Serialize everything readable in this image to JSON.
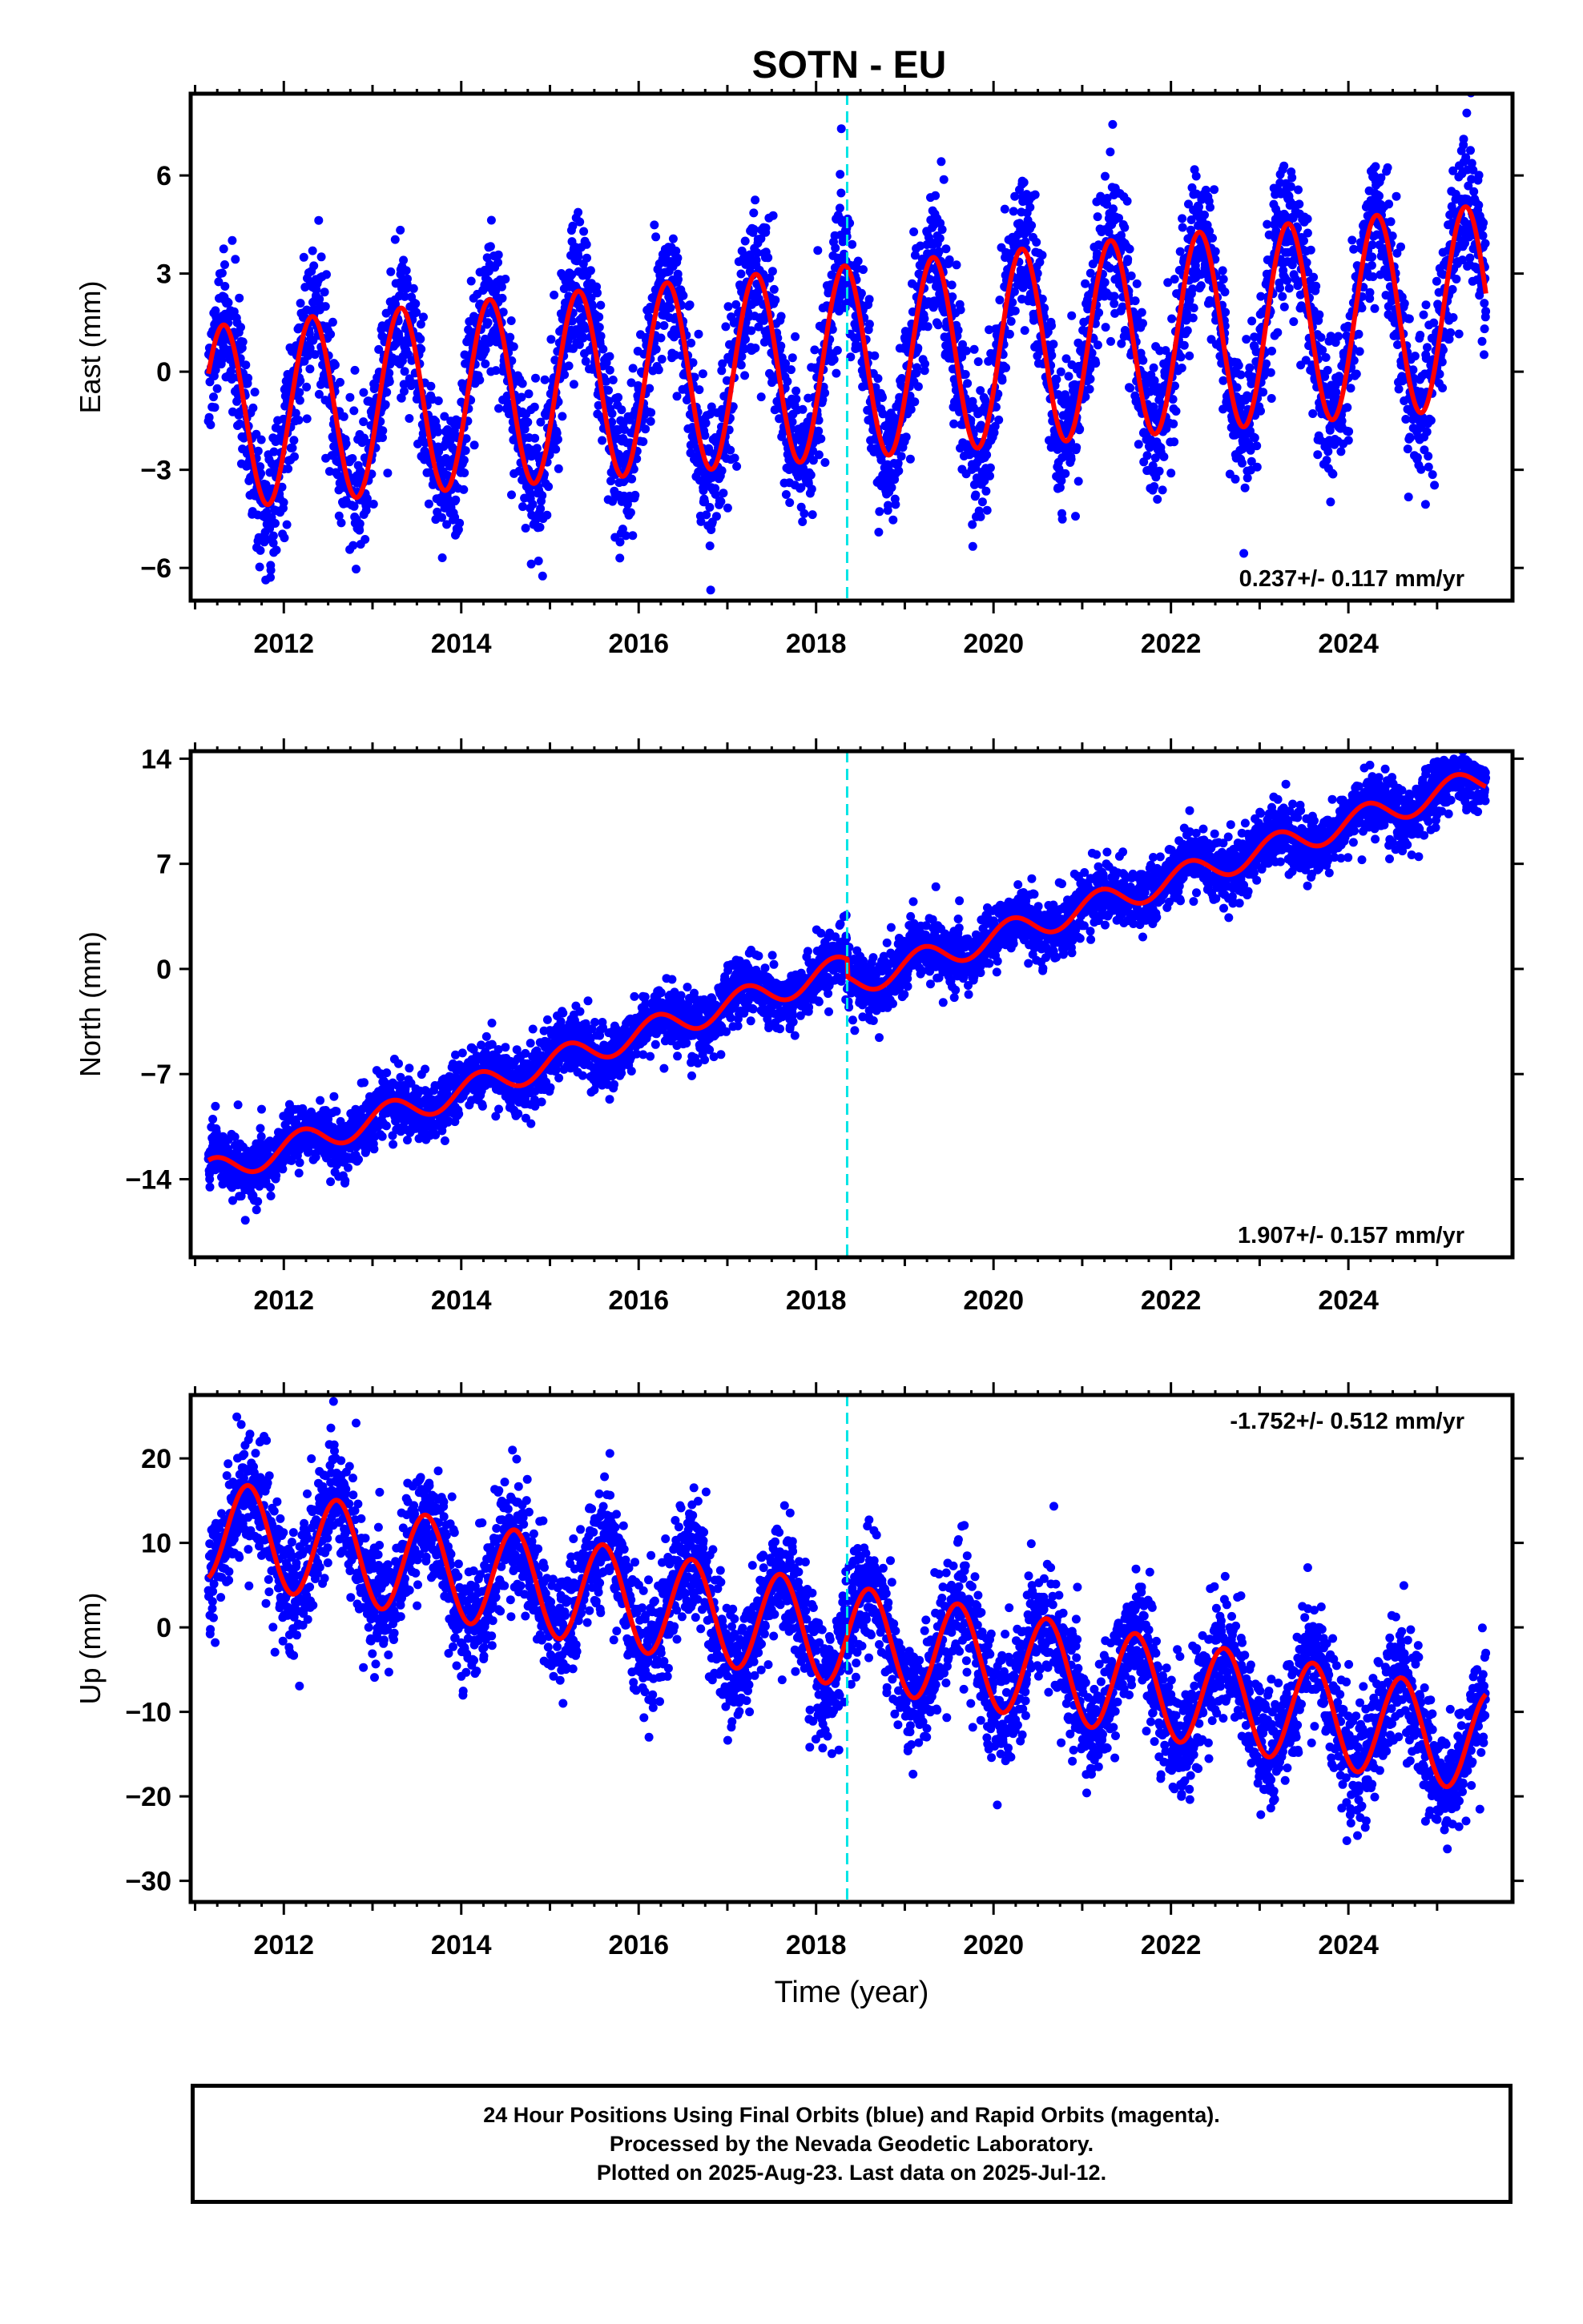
{
  "chart_data": {
    "type": "scatter",
    "title": "SOTN - EU",
    "xlabel": "Time (year)",
    "x_ticks": [
      "2012",
      "2014",
      "2016",
      "2018",
      "2020",
      "2022",
      "2024"
    ],
    "xlim": [
      2010.95,
      2025.85
    ],
    "event_marker": {
      "x": 2018.35,
      "style": "dashed",
      "color": "#00e5e5"
    },
    "point_color": "#0000ff",
    "fit_color": "#ff0000",
    "panels": [
      {
        "name": "east",
        "ylabel": "East (mm)",
        "ylim": [
          -7.0,
          8.5
        ],
        "yticks": [
          6,
          3,
          0,
          -3,
          -6
        ],
        "ytick_labels": [
          "6",
          "3",
          "0",
          "−3",
          "−6"
        ],
        "rate_label": "0.237+/- 0.117 mm/yr",
        "rate_position": "bottom-right",
        "data_range": [
          2011.15,
          2025.55
        ],
        "model": {
          "offset": -1.4,
          "trend": 0.237,
          "ref_year": 2011.2,
          "amplitude_start": 2.8,
          "amplitude_end": 3.1,
          "period": 1.0,
          "peak_phase": 0.32,
          "noise": 1.4,
          "jump": 0
        }
      },
      {
        "name": "north",
        "ylabel": "North (mm)",
        "ylim": [
          -19.2,
          14.5
        ],
        "yticks": [
          14,
          7,
          0,
          -7,
          -14
        ],
        "ytick_labels": [
          "14",
          "7",
          "0",
          "−7",
          "−14"
        ],
        "rate_label": "1.907+/- 0.157 mm/yr",
        "rate_position": "bottom-right",
        "data_range": [
          2011.15,
          2025.55
        ],
        "model": {
          "offset": -13.5,
          "trend": 1.907,
          "ref_year": 2011.2,
          "amplitude_start": 0.9,
          "amplitude_end": 0.9,
          "period": 1.0,
          "peak_phase": 0.2,
          "noise": 1.3,
          "jump": -1.2
        }
      },
      {
        "name": "up",
        "ylabel": "Up (mm)",
        "ylim": [
          -32.5,
          27.5
        ],
        "yticks": [
          20,
          10,
          0,
          -10,
          -20,
          -30
        ],
        "ytick_labels": [
          "20",
          "10",
          "0",
          "−10",
          "−20",
          "−30"
        ],
        "rate_label": "-1.752+/- 0.512 mm/yr",
        "rate_position": "top-right",
        "data_range": [
          2011.15,
          2025.55
        ],
        "model": {
          "offset": 11.5,
          "trend": -1.752,
          "ref_year": 2011.2,
          "amplitude_start": 6.0,
          "amplitude_end": 6.0,
          "period": 1.0,
          "peak_phase": 0.6,
          "noise": 4.5,
          "jump": 0
        }
      }
    ]
  },
  "caption": {
    "line1": "24 Hour Positions Using Final Orbits (blue) and Rapid Orbits (magenta).",
    "line2": "Processed by the Nevada Geodetic Laboratory.",
    "line3": "Plotted on 2025-Aug-23. Last data on 2025-Jul-12."
  }
}
